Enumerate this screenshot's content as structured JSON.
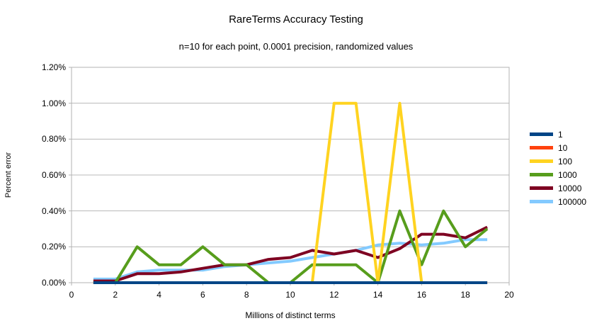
{
  "chart_data": {
    "type": "line",
    "title": "RareTerms Accuracy Testing",
    "subtitle": "n=10 for each point, 0.0001 precision, randomized values",
    "xlabel": "Millions of distinct terms",
    "ylabel": "Percent error",
    "grid": "horizontal-only",
    "legend_position": "right",
    "xlim": [
      0,
      20
    ],
    "ylim_percent": [
      0,
      1.2
    ],
    "x_tick_labels": [
      "0",
      "2",
      "4",
      "6",
      "8",
      "10",
      "12",
      "14",
      "16",
      "18",
      "20"
    ],
    "x_tick_values": [
      0,
      2,
      4,
      6,
      8,
      10,
      12,
      14,
      16,
      18,
      20
    ],
    "y_tick_labels": [
      "0.00%",
      "0.20%",
      "0.40%",
      "0.60%",
      "0.80%",
      "1.00%",
      "1.20%"
    ],
    "y_tick_values": [
      0,
      0.2,
      0.4,
      0.6,
      0.8,
      1.0,
      1.2
    ],
    "x": [
      1,
      2,
      3,
      4,
      5,
      6,
      7,
      8,
      9,
      10,
      11,
      12,
      13,
      14,
      15,
      16,
      17,
      18,
      19
    ],
    "series": [
      {
        "name": "1",
        "color": "#004586",
        "values_percent": [
          0,
          0,
          0,
          0,
          0,
          0,
          0,
          0,
          0,
          0,
          0,
          0,
          0,
          0,
          0,
          0,
          0,
          0,
          0
        ]
      },
      {
        "name": "10",
        "color": "#ff420e",
        "values_percent": [
          0,
          0,
          0,
          0,
          0,
          0,
          0,
          0,
          0,
          0,
          0,
          0,
          0,
          0,
          0,
          0,
          0,
          0,
          0
        ]
      },
      {
        "name": "100",
        "color": "#ffd320",
        "values_percent": [
          0,
          0,
          0,
          0,
          0,
          0,
          0,
          0,
          0,
          0,
          0,
          1.0,
          1.0,
          0,
          1.0,
          0,
          0,
          0,
          0
        ]
      },
      {
        "name": "1000",
        "color": "#579d1c",
        "values_percent": [
          0,
          0,
          0.2,
          0.1,
          0.1,
          0.2,
          0.1,
          0.1,
          0,
          0,
          0.1,
          0.1,
          0.1,
          0,
          0.4,
          0.1,
          0.4,
          0.2,
          0.3
        ]
      },
      {
        "name": "10000",
        "color": "#7e0021",
        "values_percent": [
          0.01,
          0.01,
          0.05,
          0.05,
          0.06,
          0.08,
          0.1,
          0.1,
          0.13,
          0.14,
          0.18,
          0.16,
          0.18,
          0.14,
          0.19,
          0.27,
          0.27,
          0.25,
          0.31
        ]
      },
      {
        "name": "100000",
        "color": "#83caff",
        "values_percent": [
          0.02,
          0.02,
          0.06,
          0.07,
          0.07,
          0.07,
          0.09,
          0.1,
          0.11,
          0.12,
          0.14,
          0.16,
          0.18,
          0.21,
          0.22,
          0.21,
          0.22,
          0.24,
          0.24
        ]
      }
    ],
    "colors": {
      "grid": "#b8b8b8",
      "plot_border": "#b3b3b3",
      "text": "#000000",
      "background": "#ffffff"
    }
  }
}
